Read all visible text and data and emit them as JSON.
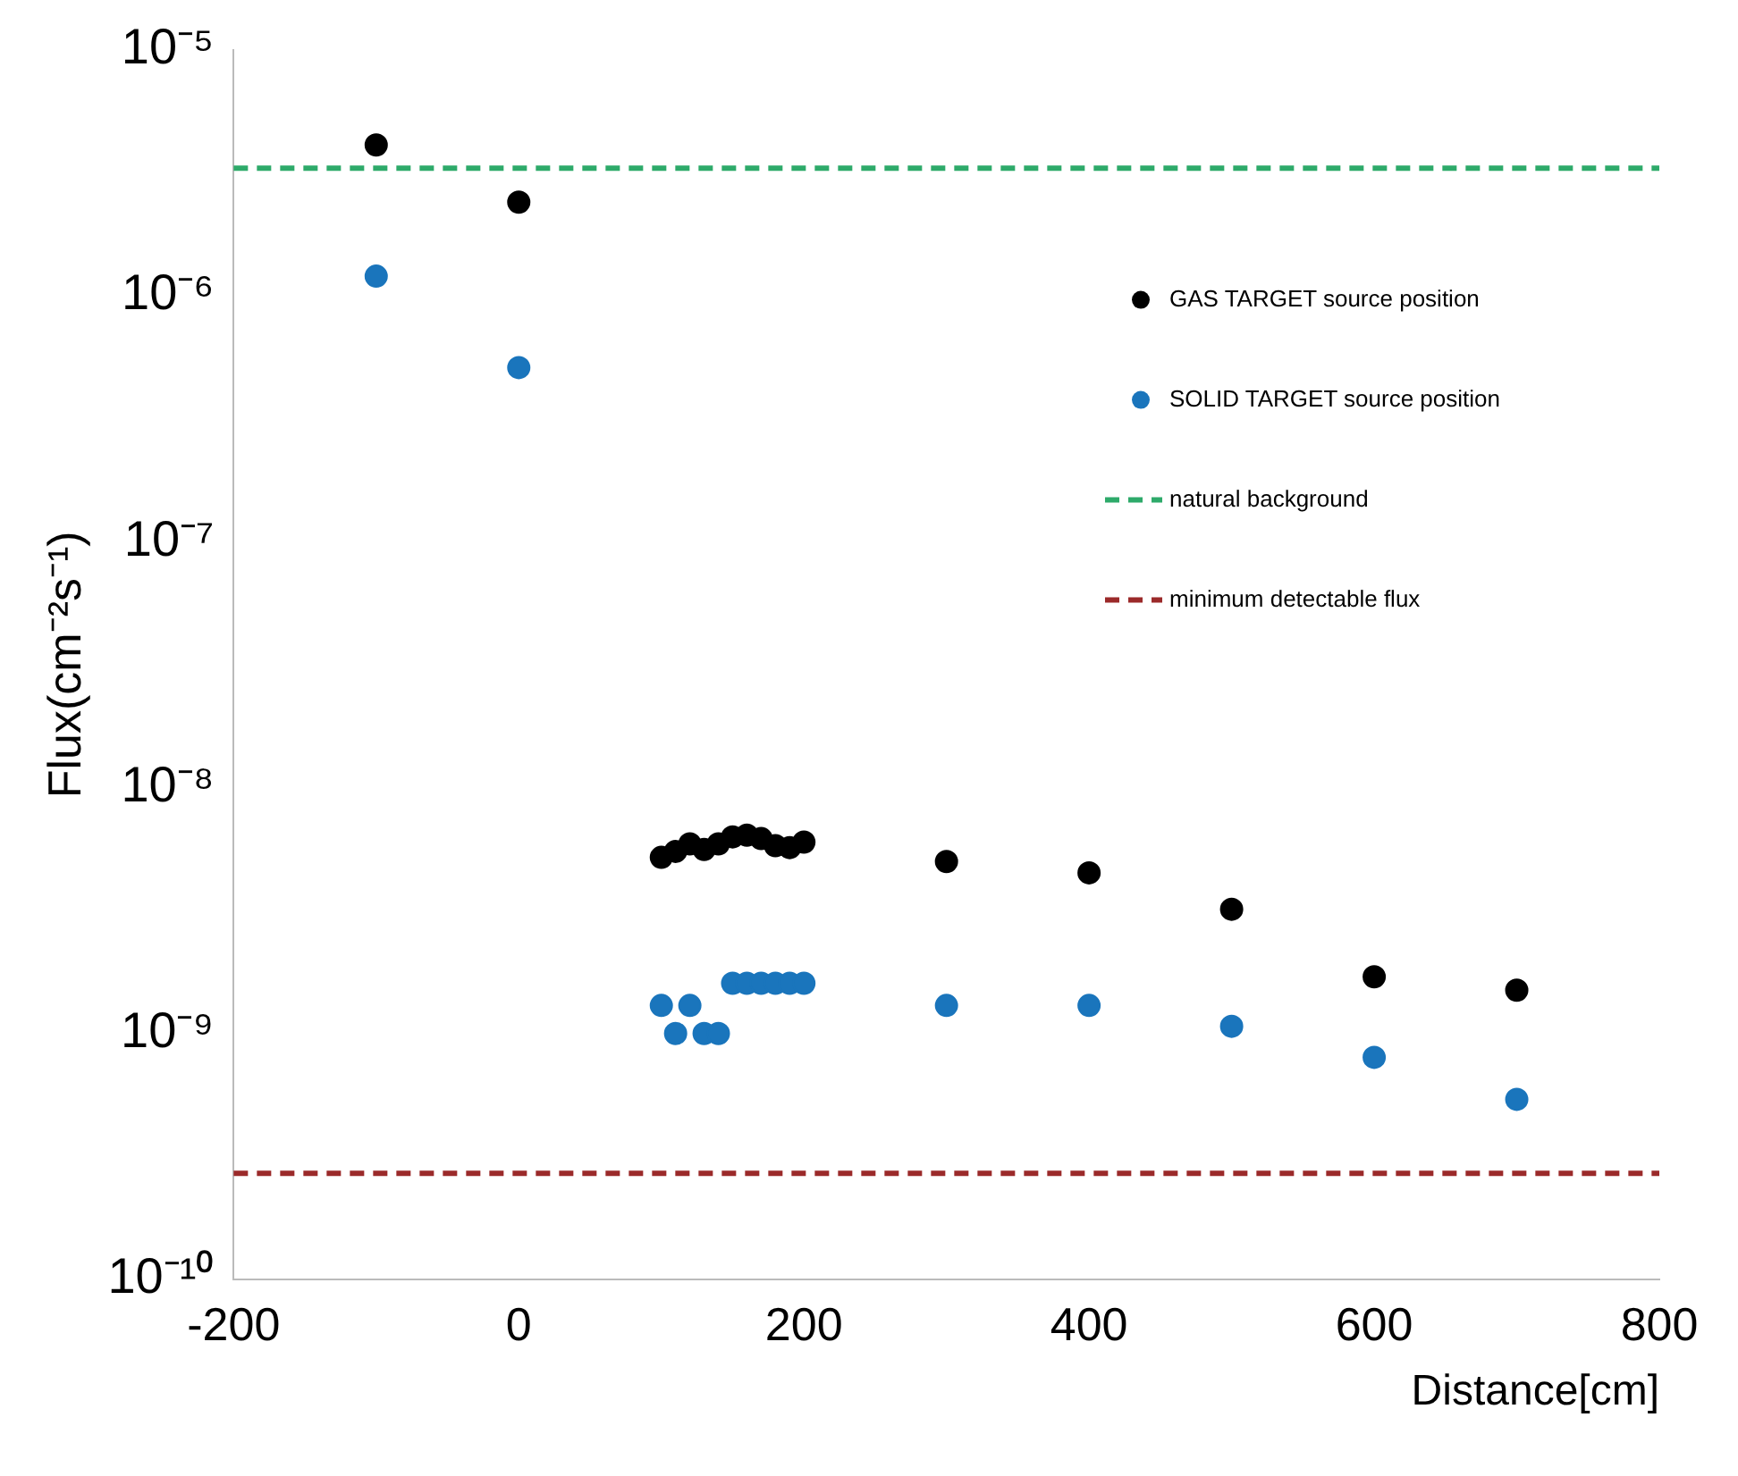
{
  "chart_data": {
    "type": "scatter",
    "xlabel": "Distance[cm]",
    "ylabel": "Flux(cm⁻²s⁻¹)",
    "log": "y",
    "grid": false,
    "legend": "top right",
    "marker": "circle",
    "xlim": [
      -200,
      800
    ],
    "xticks": [
      -200,
      0,
      200,
      400,
      600,
      800
    ],
    "ylim": [
      1e-10,
      1e-05
    ],
    "yticks": [
      {
        "value": 1e-10,
        "label": "10⁻¹⁰"
      },
      {
        "value": 1e-09,
        "label": "10⁻⁹"
      },
      {
        "value": 1e-08,
        "label": "10⁻⁸"
      },
      {
        "value": 1e-07,
        "label": "10⁻⁷"
      },
      {
        "value": 1e-06,
        "label": "10⁻⁶"
      },
      {
        "value": 1e-05,
        "label": "10⁻⁵"
      }
    ],
    "series": [
      {
        "name": "GAS TARGET source position",
        "color": "#000000",
        "x": [
          -100,
          0,
          100,
          110,
          120,
          130,
          140,
          150,
          160,
          170,
          180,
          190,
          200,
          300,
          400,
          500,
          600,
          700
        ],
        "values": [
          4.1e-06,
          2.4e-06,
          5.2e-09,
          5.5e-09,
          5.9e-09,
          5.6e-09,
          5.9e-09,
          6.3e-09,
          6.4e-09,
          6.2e-09,
          5.8e-09,
          5.7e-09,
          6e-09,
          5e-09,
          4.5e-09,
          3.2e-09,
          1.7e-09,
          1.5e-09
        ]
      },
      {
        "name": "SOLID TARGET source position",
        "color": "#1a75bc",
        "x": [
          -100,
          0,
          100,
          110,
          120,
          130,
          140,
          150,
          160,
          170,
          180,
          190,
          200,
          300,
          400,
          500,
          600,
          700
        ],
        "values": [
          1.2e-06,
          5.1e-07,
          1.3e-09,
          1e-09,
          1.3e-09,
          1e-09,
          1e-09,
          1.6e-09,
          1.6e-09,
          1.6e-09,
          1.6e-09,
          1.6e-09,
          1.6e-09,
          1.3e-09,
          1.3e-09,
          1.07e-09,
          8e-10,
          5.4e-10
        ]
      }
    ],
    "ref_lines": [
      {
        "axis": "y",
        "value": 3.3e-06,
        "label": "natural background",
        "color": "#2eaa6a",
        "line_style": "dashed"
      },
      {
        "axis": "y",
        "value": 2.7e-10,
        "label": "minimum detectable flux",
        "color": "#9b2a2a",
        "line_style": "dashed"
      }
    ]
  }
}
